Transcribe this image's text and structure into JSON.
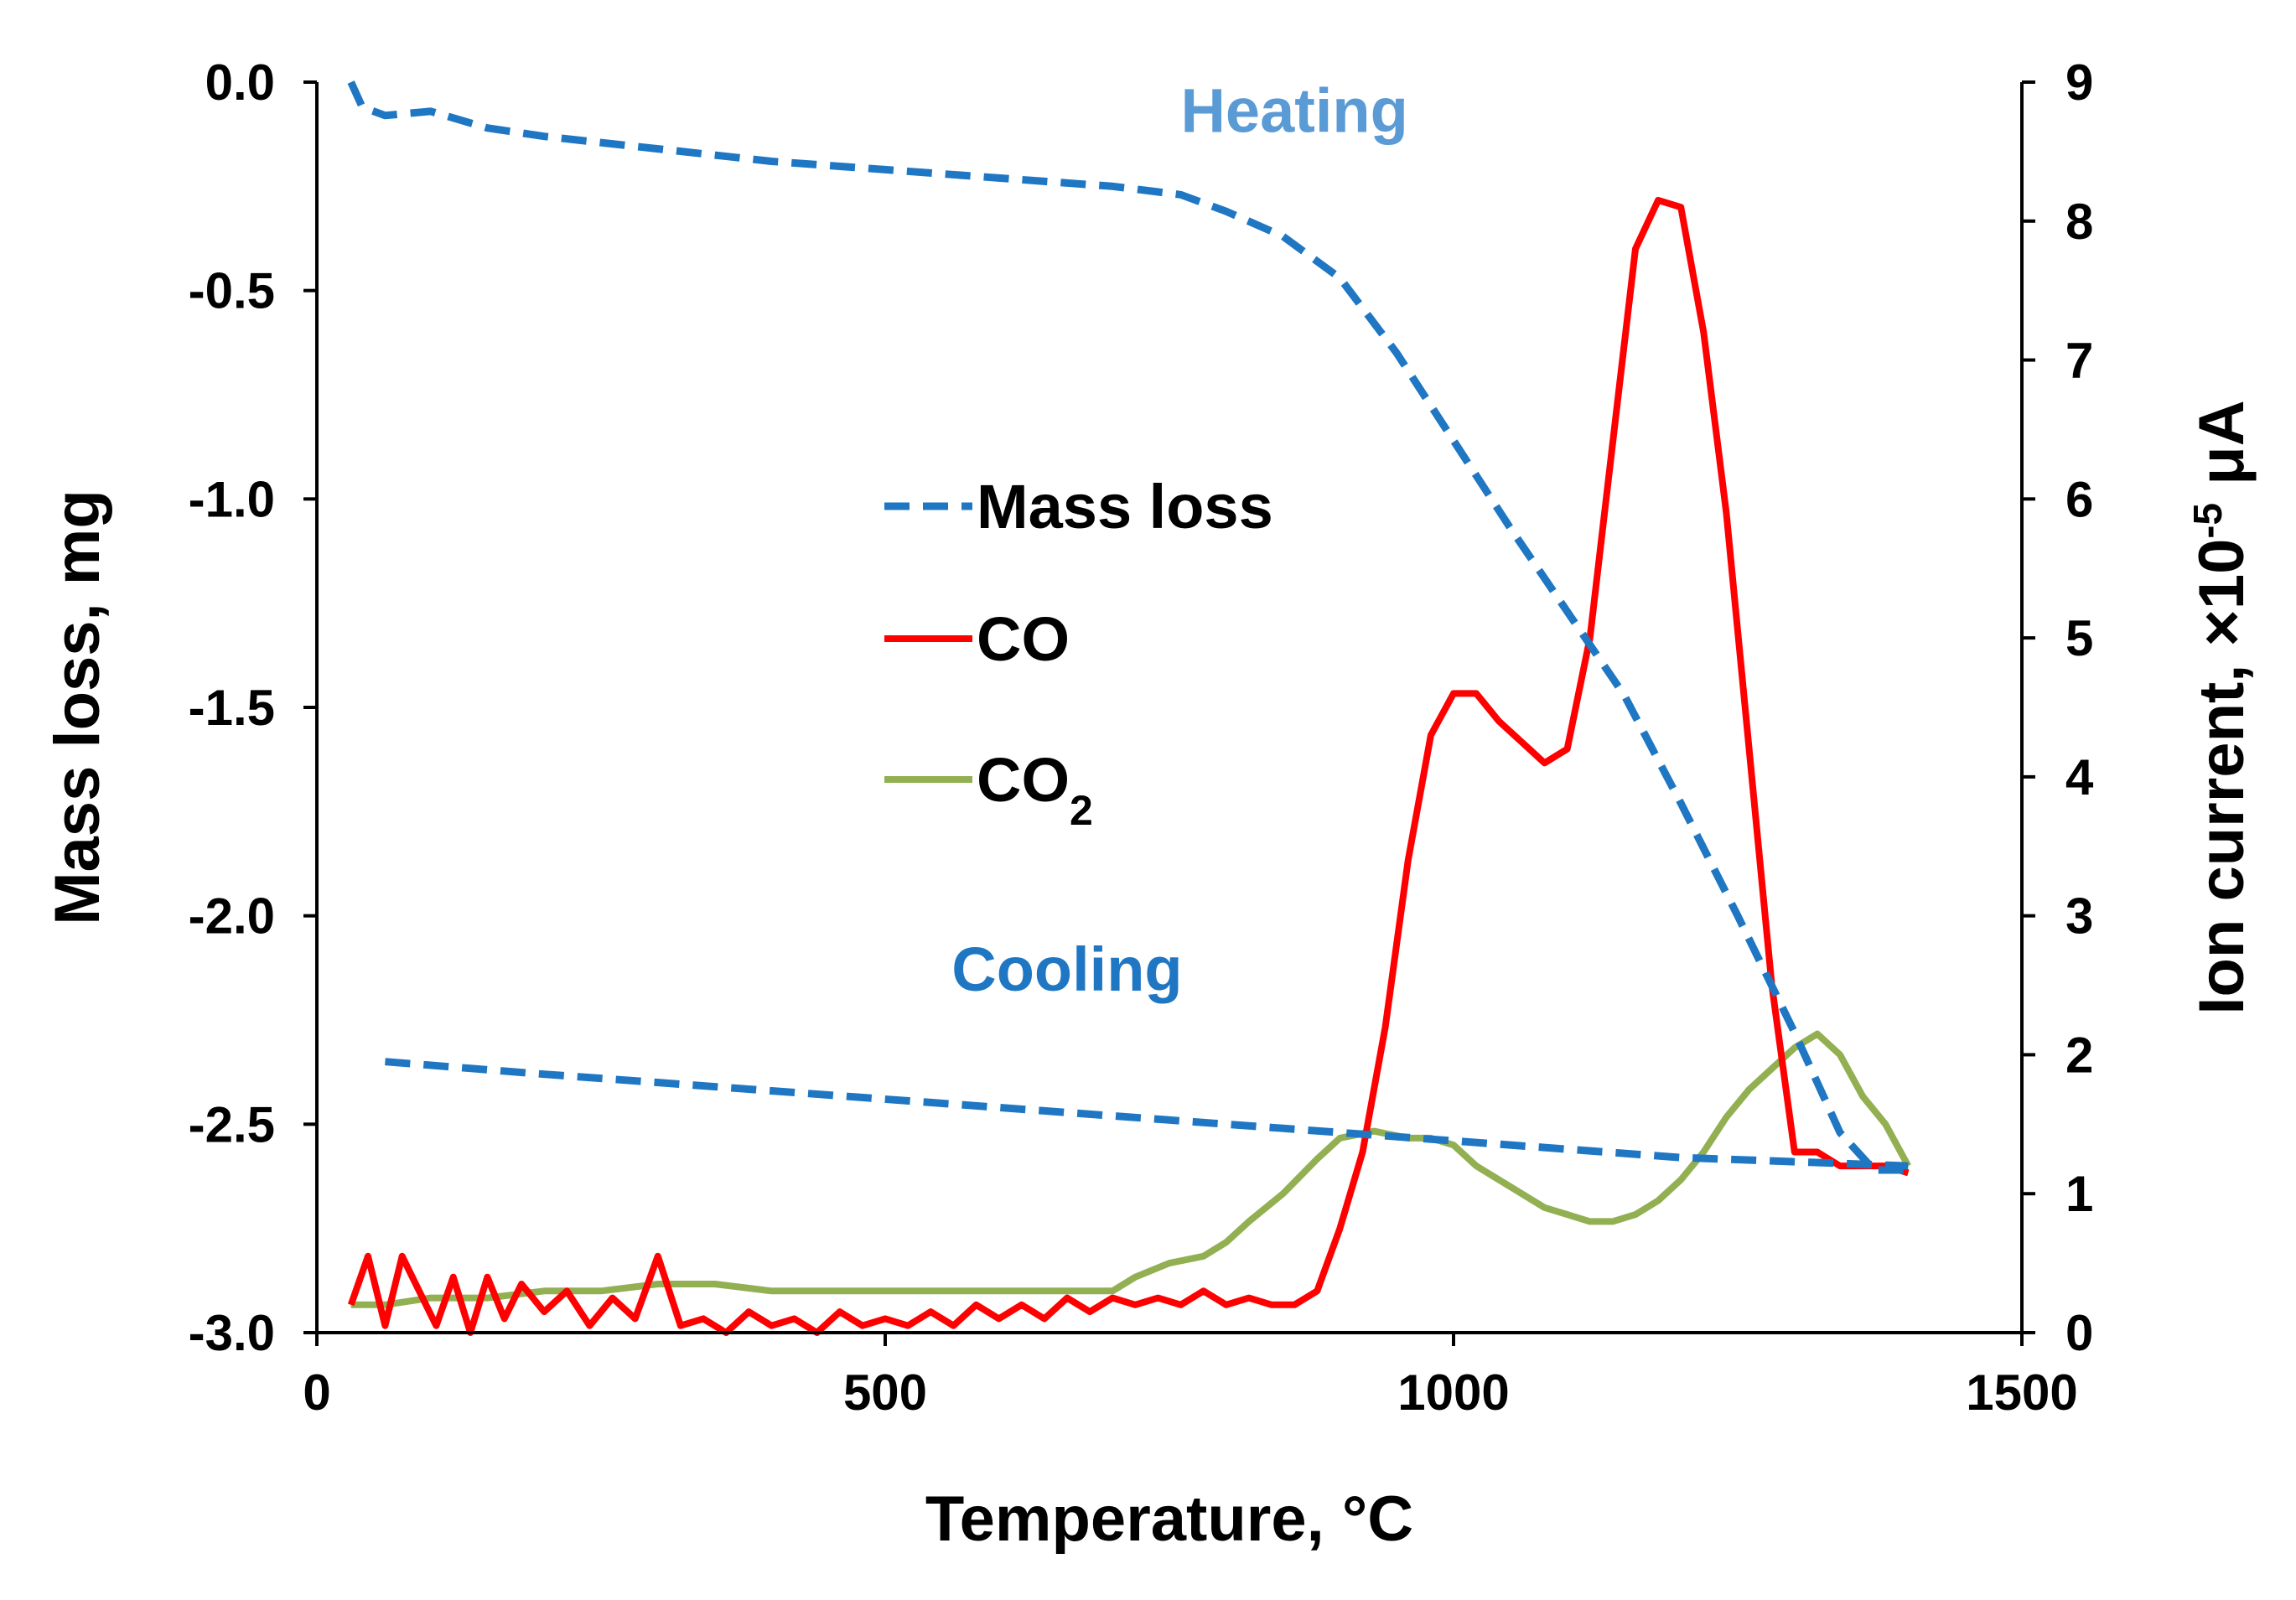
{
  "chart_data": {
    "type": "line",
    "xlabel": "Temperature, °C",
    "ylabel_left": "Mass loss, mg",
    "ylabel_right": {
      "main": "Ion current, ×10",
      "exponent": "-5",
      "unit": " μA"
    },
    "xlim": [
      0,
      1500
    ],
    "ylim_left": [
      -3.0,
      0.0
    ],
    "ylim_right": [
      0,
      9
    ],
    "x_ticks": [
      "0",
      "500",
      "1000",
      "1500"
    ],
    "x_tick_values": [
      0,
      500,
      1000,
      1500
    ],
    "left_ticks": [
      "0.0",
      "-0.5",
      "-1.0",
      "-1.5",
      "-2.0",
      "-2.5",
      "-3.0"
    ],
    "left_tick_values": [
      0.0,
      -0.5,
      -1.0,
      -1.5,
      -2.0,
      -2.5,
      -3.0
    ],
    "right_ticks": [
      "0",
      "1",
      "2",
      "3",
      "4",
      "5",
      "6",
      "7",
      "8",
      "9"
    ],
    "right_tick_values": [
      0,
      1,
      2,
      3,
      4,
      5,
      6,
      7,
      8,
      9
    ],
    "grid": false,
    "legend_position": "center",
    "legend": [
      {
        "label": "Mass loss",
        "sub": "",
        "series": "mass_loss_heating"
      },
      {
        "label": "CO",
        "sub": "",
        "series": "co"
      },
      {
        "label": "CO",
        "sub": "2",
        "series": "co2"
      }
    ],
    "annotations": [
      {
        "text": "Heating",
        "x": 860,
        "y": -0.12,
        "color": "#5b9bd5"
      },
      {
        "text": "Cooling",
        "x": 660,
        "y": -2.18,
        "color": "#1f77c4"
      }
    ],
    "colors": {
      "mass_loss": "#1f77c4",
      "co": "#ff0000",
      "co2": "#92b052",
      "heating_label": "#5b9bd5",
      "cooling_label": "#1f77c4"
    },
    "series": [
      {
        "name": "Mass loss (heating)",
        "id": "mass_loss_heating",
        "axis": "left",
        "style": "dashed",
        "x": [
          30,
          40,
          60,
          100,
          150,
          200,
          300,
          400,
          500,
          600,
          700,
          760,
          800,
          850,
          900,
          950,
          1000,
          1050,
          1100,
          1150,
          1200,
          1250,
          1300,
          1340,
          1370,
          1400
        ],
        "y": [
          0.0,
          -0.06,
          -0.08,
          -0.07,
          -0.11,
          -0.13,
          -0.16,
          -0.19,
          -0.21,
          -0.23,
          -0.25,
          -0.27,
          -0.31,
          -0.37,
          -0.47,
          -0.65,
          -0.86,
          -1.07,
          -1.27,
          -1.47,
          -1.73,
          -2.0,
          -2.28,
          -2.52,
          -2.61,
          -2.61
        ]
      },
      {
        "name": "Mass loss (cooling)",
        "id": "mass_loss_cooling",
        "axis": "left",
        "style": "dashed",
        "x": [
          60,
          200,
          400,
          600,
          800,
          1000,
          1200,
          1400
        ],
        "y": [
          -2.35,
          -2.38,
          -2.42,
          -2.46,
          -2.5,
          -2.54,
          -2.58,
          -2.6
        ]
      },
      {
        "name": "CO",
        "id": "co",
        "axis": "right",
        "style": "solid",
        "x": [
          30,
          45,
          60,
          75,
          90,
          105,
          120,
          135,
          150,
          165,
          180,
          200,
          220,
          240,
          260,
          280,
          300,
          320,
          340,
          360,
          380,
          400,
          420,
          440,
          460,
          480,
          500,
          520,
          540,
          560,
          580,
          600,
          620,
          640,
          660,
          680,
          700,
          720,
          740,
          760,
          780,
          800,
          820,
          840,
          860,
          880,
          900,
          920,
          940,
          960,
          980,
          1000,
          1020,
          1040,
          1060,
          1080,
          1100,
          1120,
          1140,
          1160,
          1180,
          1200,
          1220,
          1240,
          1260,
          1280,
          1300,
          1320,
          1340,
          1360,
          1380,
          1400
        ],
        "y": [
          0.2,
          0.55,
          0.05,
          0.55,
          0.3,
          0.05,
          0.4,
          0.0,
          0.4,
          0.1,
          0.35,
          0.15,
          0.3,
          0.05,
          0.25,
          0.1,
          0.55,
          0.05,
          0.1,
          0.0,
          0.15,
          0.05,
          0.1,
          0.0,
          0.15,
          0.05,
          0.1,
          0.05,
          0.15,
          0.05,
          0.2,
          0.1,
          0.2,
          0.1,
          0.25,
          0.15,
          0.25,
          0.2,
          0.25,
          0.2,
          0.3,
          0.2,
          0.25,
          0.2,
          0.2,
          0.3,
          0.75,
          1.3,
          2.2,
          3.4,
          4.3,
          4.6,
          4.6,
          4.4,
          4.25,
          4.1,
          4.2,
          5.0,
          6.4,
          7.8,
          8.15,
          8.1,
          7.2,
          5.9,
          4.2,
          2.5,
          1.3,
          1.3,
          1.2,
          1.2,
          1.2,
          1.15
        ]
      },
      {
        "name": "CO2",
        "id": "co2",
        "axis": "right",
        "style": "solid",
        "x": [
          30,
          60,
          100,
          150,
          200,
          250,
          300,
          350,
          400,
          450,
          500,
          550,
          600,
          650,
          700,
          720,
          750,
          780,
          800,
          820,
          850,
          880,
          900,
          930,
          960,
          980,
          1000,
          1020,
          1050,
          1080,
          1100,
          1120,
          1140,
          1160,
          1180,
          1200,
          1220,
          1240,
          1260,
          1280,
          1300,
          1320,
          1340,
          1360,
          1380,
          1400
        ],
        "y": [
          0.2,
          0.2,
          0.25,
          0.25,
          0.3,
          0.3,
          0.35,
          0.35,
          0.3,
          0.3,
          0.3,
          0.3,
          0.3,
          0.3,
          0.3,
          0.4,
          0.5,
          0.55,
          0.65,
          0.8,
          1.0,
          1.25,
          1.4,
          1.45,
          1.4,
          1.4,
          1.35,
          1.2,
          1.05,
          0.9,
          0.85,
          0.8,
          0.8,
          0.85,
          0.95,
          1.1,
          1.3,
          1.55,
          1.75,
          1.9,
          2.05,
          2.15,
          2.0,
          1.7,
          1.5,
          1.2
        ]
      }
    ]
  }
}
